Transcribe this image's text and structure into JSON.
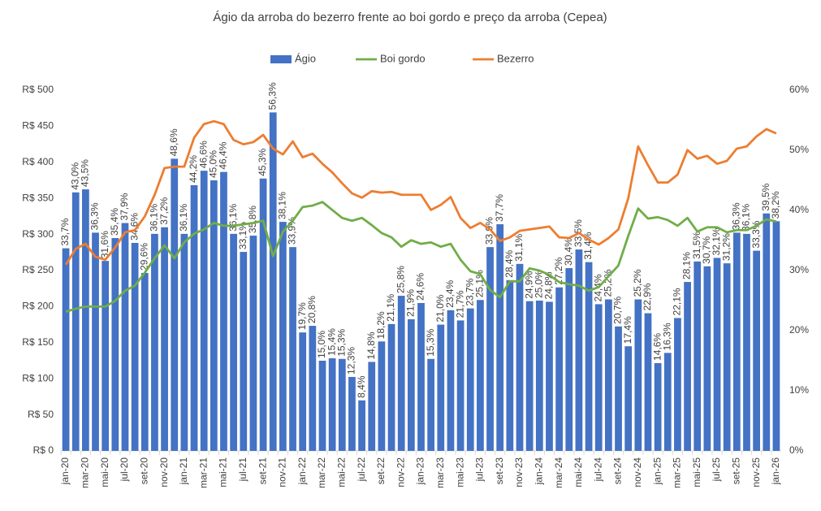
{
  "chart_data": {
    "type": "bar-line",
    "title": "Ágio da arroba do bezerro frente ao boi gordo e preço da arroba (Cepea)",
    "categories": [
      "jan-20",
      null,
      "mar-20",
      null,
      "mai-20",
      null,
      "jul-20",
      null,
      "set-20",
      null,
      "nov-20",
      null,
      "jan-21",
      null,
      "mar-21",
      null,
      "mai-21",
      null,
      "jul-21",
      null,
      "set-21",
      null,
      "nov-21",
      null,
      "jan-22",
      null,
      "mar-22",
      null,
      "mai-22",
      null,
      "jul-22",
      null,
      "set-22",
      null,
      "nov-22",
      null,
      "jan-23",
      null,
      "mar-23",
      null,
      "mai-23",
      null,
      "jul-23",
      null,
      "set-23",
      null,
      "nov-23",
      null,
      "jan-24",
      null,
      "mar-24",
      null,
      "mai-24",
      null,
      "jul-24",
      null,
      "set-24",
      null,
      "nov-24",
      null,
      "jan-25",
      null,
      "mar-25",
      null,
      "mai-25",
      null,
      "jul-25",
      null,
      "set-25",
      null,
      "nov-25",
      null,
      "jan-26"
    ],
    "series": [
      {
        "name": "Ágio",
        "type": "bar",
        "axis": "y2",
        "color": "#4472c4",
        "values": [
          33.7,
          43.0,
          43.5,
          36.3,
          31.6,
          35.4,
          37.9,
          34.6,
          29.6,
          36.1,
          37.2,
          48.6,
          36.1,
          44.2,
          46.6,
          45.0,
          46.4,
          36.1,
          33.1,
          35.8,
          45.3,
          56.3,
          38.1,
          33.9,
          19.7,
          20.8,
          15.0,
          15.4,
          15.3,
          12.3,
          8.4,
          14.8,
          18.2,
          21.1,
          25.8,
          21.9,
          24.6,
          15.3,
          21.0,
          23.4,
          21.7,
          23.7,
          25.1,
          33.9,
          37.7,
          28.4,
          31.1,
          24.9,
          25.0,
          24.8,
          27.2,
          30.4,
          33.5,
          31.4,
          24.4,
          25.2,
          20.7,
          17.4,
          25.2,
          22.9,
          14.6,
          16.3,
          22.1,
          28.1,
          31.5,
          30.7,
          32.1,
          31.2,
          36.3,
          36.1,
          33.3,
          39.5,
          38.2
        ],
        "value_labels": [
          "33,7%",
          "43,0%",
          "43,5%",
          "36,3%",
          "31,6%",
          "35,4%",
          "37,9%",
          "34,6%",
          "29,6%",
          "36,1%",
          "37,2%",
          "48,6%",
          "36,1%",
          "44,2%",
          "46,6%",
          "45,0%",
          "46,4%",
          "36,1%",
          "33,1%",
          "35,8%",
          "45,3%",
          "56,3%",
          "38,1%",
          "33,9%",
          "19,7%",
          "20,8%",
          "15,0%",
          "15,4%",
          "15,3%",
          "12,3%",
          "8,4%",
          "14,8%",
          "18,2%",
          "21,1%",
          "25,8%",
          "21,9%",
          "24,6%",
          "15,3%",
          "21,0%",
          "23,4%",
          "21,7%",
          "23,7%",
          "25,1%",
          "33,9%",
          "37,7%",
          "28,4%",
          "31,1%",
          "24,9%",
          "25,0%",
          "24,8%",
          "27,2%",
          "30,4%",
          "33,5%",
          "31,4%",
          "24,4%",
          "25,2%",
          "20,7%",
          "17,4%",
          "25,2%",
          "22,9%",
          "14,6%",
          "16,3%",
          "22,1%",
          "28,1%",
          "31,5%",
          "30,7%",
          "32,1%",
          "31,2%",
          "36,3%",
          "36,1%",
          "33,3%",
          "39,5%",
          "38,2%"
        ]
      },
      {
        "name": "Boi gordo",
        "type": "line",
        "axis": "y",
        "color": "#70ad47",
        "values": [
          193,
          197,
          200,
          200,
          200,
          208,
          222,
          229,
          247,
          267,
          285,
          267,
          289,
          301,
          307,
          316,
          312,
          312,
          314,
          316,
          319,
          270,
          304,
          319,
          338,
          340,
          345,
          334,
          323,
          319,
          323,
          313,
          302,
          296,
          283,
          292,
          287,
          289,
          283,
          287,
          265,
          249,
          245,
          223,
          213,
          235,
          235,
          253,
          250,
          244,
          234,
          231,
          229,
          222,
          227,
          242,
          257,
          298,
          336,
          322,
          324,
          320,
          312,
          323,
          304,
          310,
          310,
          303,
          306,
          306,
          312,
          321,
          318
        ]
      },
      {
        "name": "Bezerro",
        "type": "line",
        "axis": "y",
        "color": "#ed7d31",
        "values": [
          258,
          280,
          287,
          269,
          265,
          282,
          303,
          306,
          325,
          355,
          392,
          394,
          394,
          434,
          453,
          457,
          453,
          431,
          425,
          428,
          438,
          419,
          411,
          429,
          407,
          412,
          398,
          386,
          371,
          357,
          351,
          360,
          358,
          359,
          355,
          355,
          355,
          334,
          341,
          352,
          323,
          309,
          316,
          307,
          291,
          296,
          305,
          307,
          309,
          311,
          296,
          295,
          302,
          293,
          286,
          295,
          307,
          350,
          422,
          396,
          372,
          372,
          383,
          417,
          405,
          409,
          398,
          402,
          419,
          422,
          436,
          446,
          440
        ]
      }
    ],
    "ylim": [
      0,
      500
    ],
    "yticks": [
      {
        "value": 0,
        "label": "R$ 0"
      },
      {
        "value": 50,
        "label": "R$ 50"
      },
      {
        "value": 100,
        "label": "R$ 100"
      },
      {
        "value": 150,
        "label": "R$ 150"
      },
      {
        "value": 200,
        "label": "R$ 200"
      },
      {
        "value": 250,
        "label": "R$ 250"
      },
      {
        "value": 300,
        "label": "R$ 300"
      },
      {
        "value": 350,
        "label": "R$ 350"
      },
      {
        "value": 400,
        "label": "R$ 400"
      },
      {
        "value": 450,
        "label": "R$ 450"
      },
      {
        "value": 500,
        "label": "R$ 500"
      }
    ],
    "y2lim": [
      0,
      60
    ],
    "y2ticks": [
      {
        "value": 0,
        "label": "0%"
      },
      {
        "value": 10,
        "label": "10%"
      },
      {
        "value": 20,
        "label": "20%"
      },
      {
        "value": 30,
        "label": "30%"
      },
      {
        "value": 40,
        "label": "40%"
      },
      {
        "value": 50,
        "label": "50%"
      },
      {
        "value": 60,
        "label": "60%"
      }
    ],
    "legend": "top",
    "grid": false
  }
}
